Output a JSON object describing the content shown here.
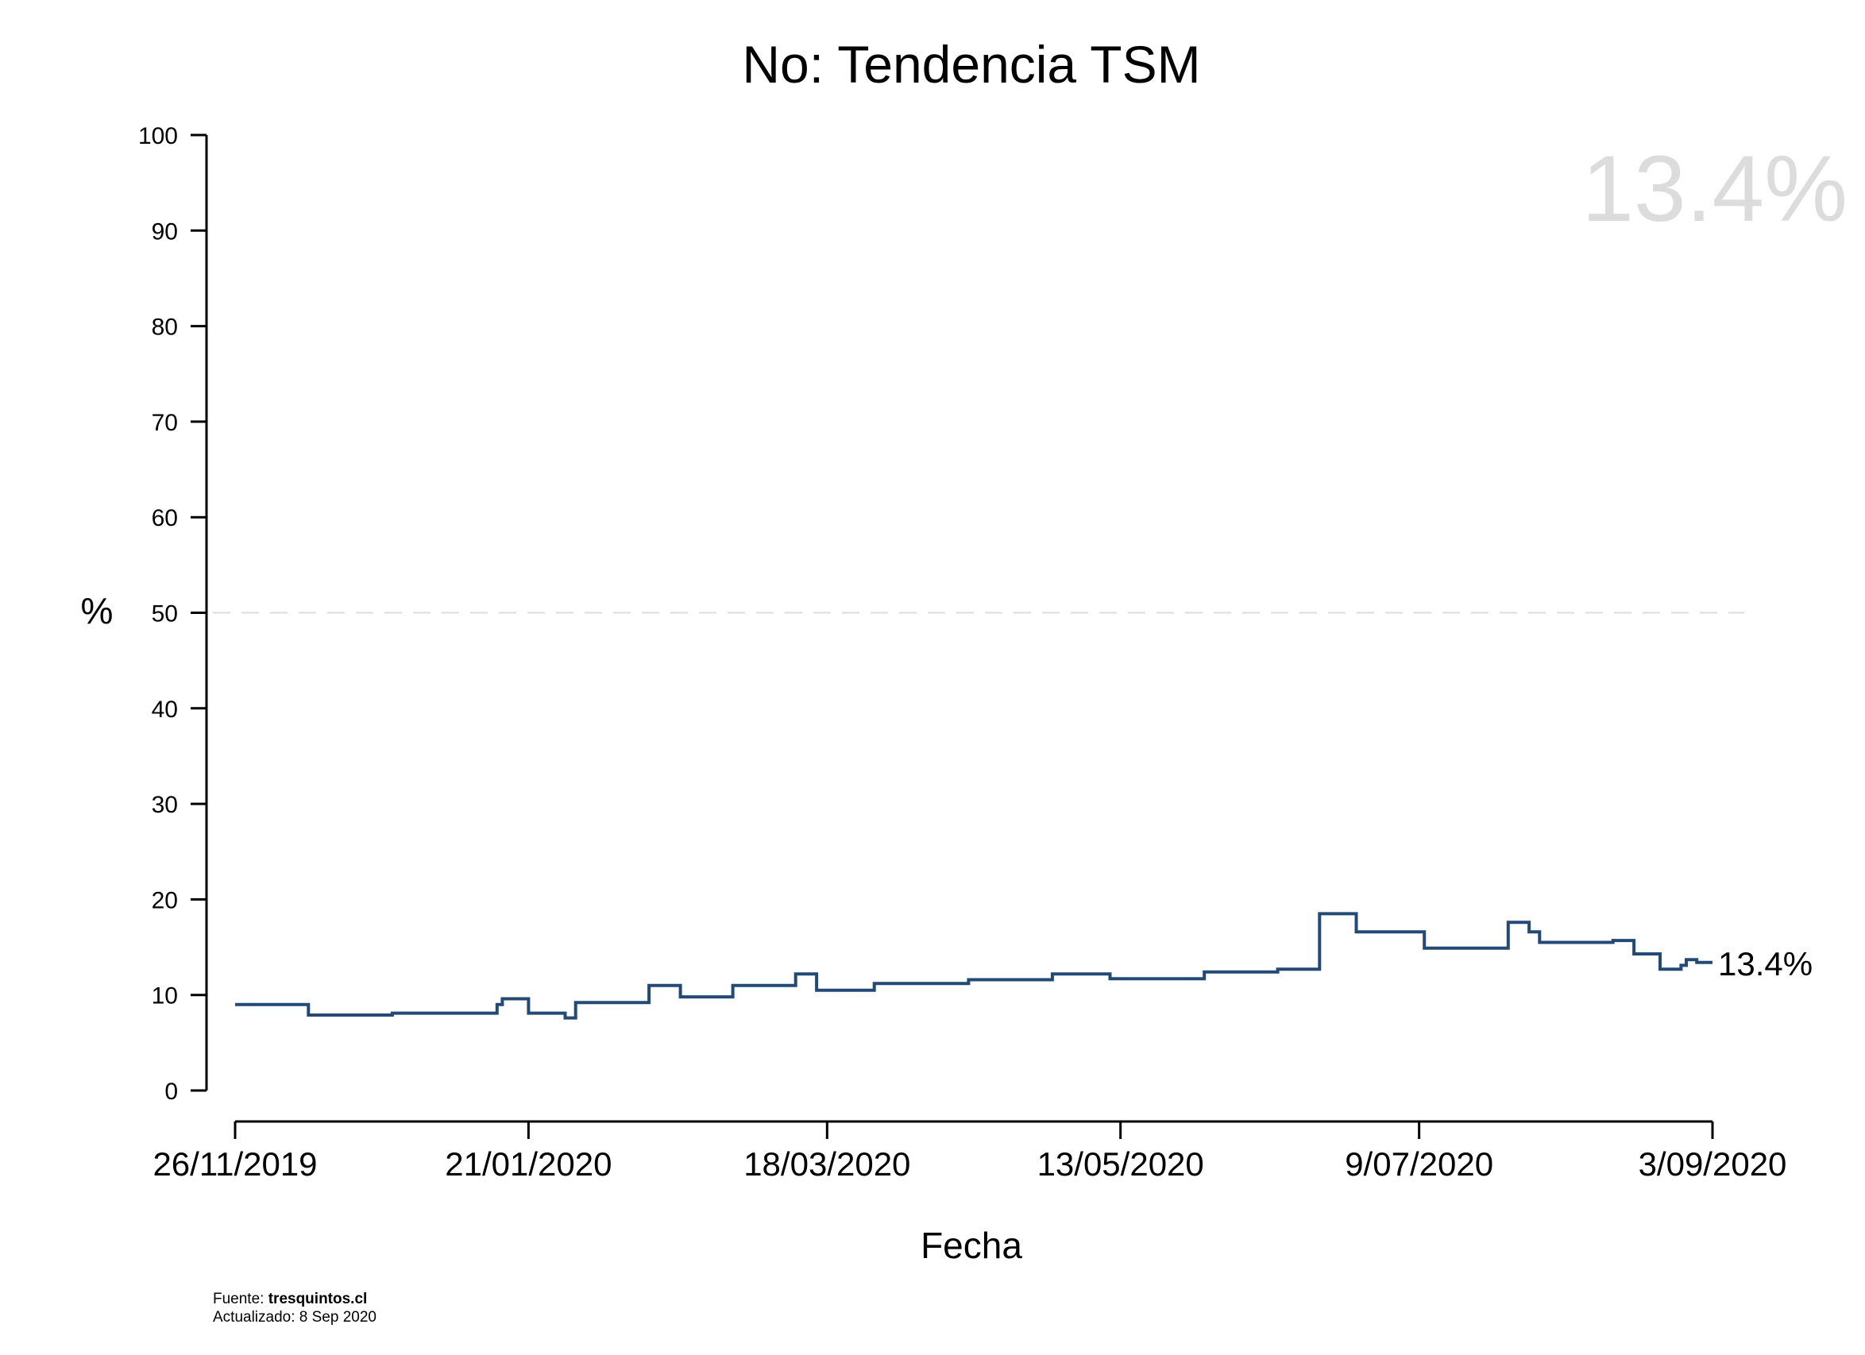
{
  "chart_data": {
    "type": "line",
    "step": true,
    "title": "No: Tendencia TSM",
    "xlabel": "Fecha",
    "ylabel": "%",
    "ylim": [
      0,
      100
    ],
    "yticks": [
      "0",
      "10",
      "20",
      "30",
      "40",
      "50",
      "60",
      "70",
      "80",
      "90",
      "100"
    ],
    "xlim": [
      "2019-11-26",
      "2020-09-03"
    ],
    "xticks": [
      {
        "date": "2019-11-26",
        "label": "26/11/2019"
      },
      {
        "date": "2020-01-21",
        "label": "21/01/2020"
      },
      {
        "date": "2020-03-18",
        "label": "18/03/2020"
      },
      {
        "date": "2020-05-13",
        "label": "13/05/2020"
      },
      {
        "date": "2020-07-09",
        "label": "9/07/2020"
      },
      {
        "date": "2020-09-03",
        "label": "3/09/2020"
      }
    ],
    "reference_line": {
      "y": 50,
      "style": "dashed",
      "color": "#dcdcdc"
    },
    "series": [
      {
        "color": "#234a77",
        "points": [
          {
            "date": "2019-11-26",
            "value": 9.0
          },
          {
            "date": "2019-12-10",
            "value": 7.9
          },
          {
            "date": "2019-12-26",
            "value": 8.1
          },
          {
            "date": "2020-01-15",
            "value": 9.0
          },
          {
            "date": "2020-01-16",
            "value": 9.6
          },
          {
            "date": "2020-01-21",
            "value": 8.1
          },
          {
            "date": "2020-01-28",
            "value": 7.6
          },
          {
            "date": "2020-01-30",
            "value": 9.2
          },
          {
            "date": "2020-02-13",
            "value": 11.0
          },
          {
            "date": "2020-02-19",
            "value": 9.8
          },
          {
            "date": "2020-02-29",
            "value": 11.0
          },
          {
            "date": "2020-03-12",
            "value": 12.2
          },
          {
            "date": "2020-03-16",
            "value": 10.5
          },
          {
            "date": "2020-03-27",
            "value": 11.2
          },
          {
            "date": "2020-04-14",
            "value": 11.6
          },
          {
            "date": "2020-04-30",
            "value": 12.2
          },
          {
            "date": "2020-05-11",
            "value": 11.7
          },
          {
            "date": "2020-05-29",
            "value": 12.4
          },
          {
            "date": "2020-06-12",
            "value": 12.7
          },
          {
            "date": "2020-06-20",
            "value": 18.5
          },
          {
            "date": "2020-06-27",
            "value": 16.6
          },
          {
            "date": "2020-07-10",
            "value": 14.9
          },
          {
            "date": "2020-07-26",
            "value": 17.6
          },
          {
            "date": "2020-07-30",
            "value": 16.6
          },
          {
            "date": "2020-08-01",
            "value": 15.5
          },
          {
            "date": "2020-08-15",
            "value": 15.7
          },
          {
            "date": "2020-08-19",
            "value": 14.3
          },
          {
            "date": "2020-08-24",
            "value": 12.7
          },
          {
            "date": "2020-08-28",
            "value": 13.1
          },
          {
            "date": "2020-08-29",
            "value": 13.7
          },
          {
            "date": "2020-08-31",
            "value": 13.4
          },
          {
            "date": "2020-09-03",
            "value": 13.4
          }
        ]
      }
    ],
    "end_label": "13.4%",
    "watermark": "13.4%"
  },
  "footer": {
    "source_prefix": "Fuente: ",
    "source_name": "tresquintos.cl",
    "updated": "Actualizado: 8 Sep 2020"
  }
}
